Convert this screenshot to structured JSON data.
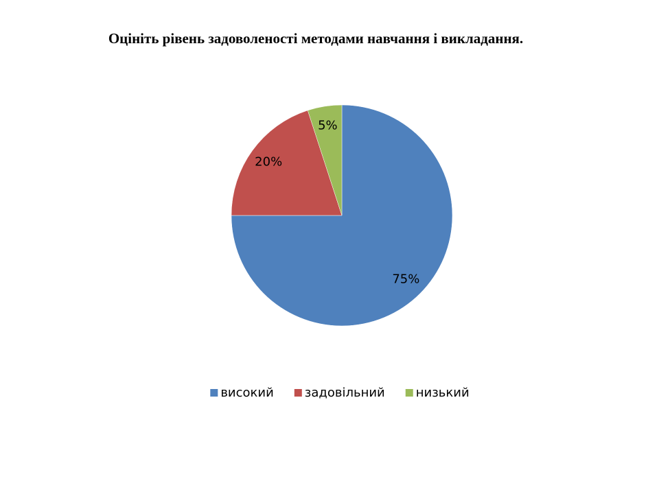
{
  "chart_data": {
    "type": "pie",
    "title": "Оцініть рівень задоволеності методами навчання і викладання.",
    "categories": [
      "високий",
      "задовільний",
      "низький"
    ],
    "values": [
      75,
      20,
      5
    ],
    "value_labels": [
      "75%",
      "20%",
      "5%"
    ],
    "colors": [
      "#4f81bd",
      "#c0504d",
      "#9bbb59"
    ],
    "legend": "bottom"
  }
}
